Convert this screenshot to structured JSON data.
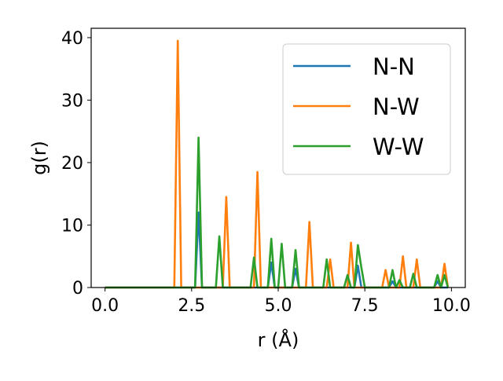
{
  "chart_data": {
    "type": "line",
    "title": "",
    "xlabel": "r (Å)",
    "ylabel": "g(r)",
    "xlim": [
      -0.4,
      10.4
    ],
    "ylim": [
      0,
      41.5
    ],
    "xticks": [
      0.0,
      2.5,
      5.0,
      7.5,
      10.0
    ],
    "xtick_labels": [
      "0.0",
      "2.5",
      "5.0",
      "7.5",
      "10.0"
    ],
    "yticks": [
      0,
      10,
      20,
      30,
      40
    ],
    "ytick_labels": [
      "0",
      "10",
      "20",
      "30",
      "40"
    ],
    "grid": false,
    "legend": "top-right",
    "series": [
      {
        "name": "N-N",
        "color": "#1f77b4",
        "x": [
          0.0,
          2.6,
          2.7,
          2.8,
          4.7,
          4.8,
          4.9,
          5.4,
          5.5,
          5.6,
          7.2,
          7.3,
          7.4,
          8.2,
          8.3,
          8.4,
          9.5,
          9.6,
          9.7,
          9.9
        ],
        "y": [
          0.0,
          0.0,
          12.0,
          0.0,
          0.0,
          4.0,
          0.0,
          0.0,
          3.0,
          0.0,
          0.0,
          3.5,
          0.0,
          0.0,
          1.0,
          0.0,
          0.0,
          1.0,
          0.0,
          0.0
        ]
      },
      {
        "name": "N-W",
        "color": "#ff7f0e",
        "x": [
          0.0,
          2.0,
          2.1,
          2.2,
          3.4,
          3.5,
          3.6,
          4.3,
          4.4,
          4.5,
          5.8,
          5.9,
          6.0,
          6.4,
          6.5,
          6.6,
          7.0,
          7.1,
          7.2,
          8.0,
          8.1,
          8.2,
          8.5,
          8.6,
          8.7,
          8.9,
          9.0,
          9.1,
          9.7,
          9.8,
          9.9
        ],
        "y": [
          0.0,
          0.0,
          39.5,
          0.0,
          0.0,
          14.5,
          0.0,
          0.0,
          18.5,
          0.0,
          0.0,
          10.5,
          0.0,
          0.0,
          4.5,
          0.0,
          0.0,
          7.2,
          0.0,
          0.0,
          2.8,
          0.0,
          0.0,
          5.0,
          0.0,
          0.0,
          4.5,
          0.0,
          0.0,
          3.8,
          0.0
        ]
      },
      {
        "name": "W-W",
        "color": "#2ca02c",
        "x": [
          0.0,
          2.6,
          2.7,
          2.8,
          3.2,
          3.3,
          3.4,
          4.2,
          4.3,
          4.4,
          4.7,
          4.8,
          4.9,
          5.0,
          5.1,
          5.2,
          5.4,
          5.5,
          5.6,
          6.3,
          6.4,
          6.5,
          6.9,
          7.0,
          7.1,
          7.2,
          7.3,
          7.4,
          7.5,
          7.6,
          8.2,
          8.3,
          8.4,
          8.5,
          8.6,
          8.8,
          8.9,
          9.0,
          9.5,
          9.6,
          9.7,
          9.8,
          9.9
        ],
        "y": [
          0.0,
          0.0,
          24.0,
          0.0,
          0.0,
          8.2,
          0.0,
          0.0,
          4.8,
          0.0,
          0.0,
          7.8,
          0.0,
          0.0,
          7.0,
          0.0,
          0.0,
          6.0,
          0.0,
          0.0,
          4.5,
          0.0,
          0.0,
          2.0,
          0.0,
          0.0,
          6.8,
          3.2,
          0.0,
          0.0,
          0.0,
          2.8,
          0.0,
          1.2,
          0.0,
          0.0,
          2.2,
          0.0,
          0.0,
          2.0,
          0.0,
          2.0,
          0.0
        ]
      }
    ]
  }
}
